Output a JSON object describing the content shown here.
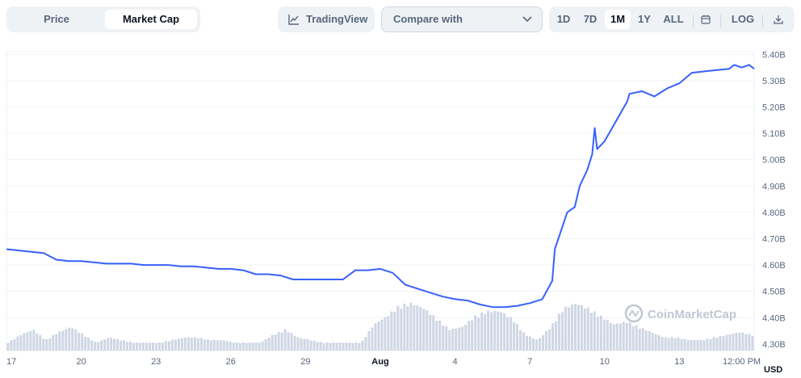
{
  "toolbar": {
    "view_tabs": [
      {
        "label": "Price",
        "active": false
      },
      {
        "label": "Market Cap",
        "active": true
      }
    ],
    "tradingview_label": "TradingView",
    "compare_label": "Compare with",
    "ranges": [
      {
        "label": "1D",
        "active": false
      },
      {
        "label": "7D",
        "active": false
      },
      {
        "label": "1M",
        "active": true
      },
      {
        "label": "1Y",
        "active": false
      },
      {
        "label": "ALL",
        "active": false
      }
    ],
    "calendar_icon": "calendar-icon",
    "log_label": "LOG",
    "download_icon": "download-icon"
  },
  "watermark": "CoinMarketCap",
  "currency_label": "USD",
  "colors": {
    "line": "#3861fb",
    "volume": "#cfd6e4",
    "grid": "#eff2f5",
    "text_muted": "#58667e",
    "control_bg": "#eff2f5"
  },
  "chart_data": {
    "type": "line",
    "series": [
      {
        "x": [
          0,
          0.5,
          1,
          1.5,
          2,
          2.5,
          3,
          3.5,
          4,
          4.5,
          5,
          5.5,
          6,
          6.5,
          7,
          7.5,
          8,
          8.5,
          9,
          9.5,
          10,
          10.5,
          11,
          11.5,
          12,
          12.5,
          13,
          13.5,
          14,
          14.5,
          15,
          15.5,
          16,
          16.5,
          17,
          17.5,
          18,
          18.5,
          19,
          19.5,
          20,
          20.5,
          21,
          21.5,
          21.9,
          22,
          22.5,
          22.8,
          23,
          23.3,
          23.5,
          23.6,
          23.7,
          24,
          24.3,
          24.6,
          24.9,
          25,
          25.5,
          26,
          26.5,
          27,
          27.5,
          28,
          28.5,
          29,
          29.2,
          29.5,
          29.8,
          30
        ],
        "y": [
          4.66,
          4.655,
          4.65,
          4.645,
          4.62,
          4.615,
          4.615,
          4.61,
          4.605,
          4.605,
          4.605,
          4.6,
          4.6,
          4.6,
          4.595,
          4.595,
          4.59,
          4.585,
          4.585,
          4.58,
          4.565,
          4.565,
          4.56,
          4.545,
          4.545,
          4.545,
          4.545,
          4.545,
          4.58,
          4.58,
          4.585,
          4.57,
          4.525,
          4.51,
          4.495,
          4.48,
          4.47,
          4.465,
          4.45,
          4.44,
          4.44,
          4.445,
          4.455,
          4.47,
          4.54,
          4.66,
          4.8,
          4.82,
          4.9,
          4.96,
          5.02,
          5.12,
          5.04,
          5.07,
          5.12,
          5.17,
          5.22,
          5.25,
          5.26,
          5.24,
          5.27,
          5.29,
          5.33,
          5.335,
          5.34,
          5.345,
          5.36,
          5.35,
          5.36,
          5.345
        ]
      }
    ],
    "volume_profile": [
      0.3,
      0.6,
      0.8,
      0.4,
      0.7,
      0.9,
      0.6,
      0.3,
      0.5,
      0.4,
      0.3,
      0.3,
      0.3,
      0.4,
      0.5,
      0.5,
      0.4,
      0.4,
      0.3,
      0.3,
      0.3,
      0.6,
      0.8,
      0.5,
      0.4,
      0.3,
      0.3,
      0.3,
      0.3,
      1.0,
      1.3,
      1.7,
      1.8,
      1.6,
      1.2,
      0.8,
      0.9,
      1.3,
      1.5,
      1.5,
      1.2,
      0.6,
      0.4,
      0.9,
      1.6,
      1.8,
      1.6,
      1.3,
      1.0,
      1.1,
      0.9,
      0.7,
      0.5,
      0.5,
      0.4,
      0.4,
      0.5,
      0.6,
      0.7,
      0.6
    ],
    "x_ticks": [
      {
        "x": 0,
        "label": "17",
        "bold": false
      },
      {
        "x": 3,
        "label": "20",
        "bold": false
      },
      {
        "x": 6,
        "label": "23",
        "bold": false
      },
      {
        "x": 9,
        "label": "26",
        "bold": false
      },
      {
        "x": 12,
        "label": "29",
        "bold": false
      },
      {
        "x": 15,
        "label": "Aug",
        "bold": true
      },
      {
        "x": 18,
        "label": "4",
        "bold": false
      },
      {
        "x": 21,
        "label": "7",
        "bold": false
      },
      {
        "x": 24,
        "label": "10",
        "bold": false
      },
      {
        "x": 27,
        "label": "13",
        "bold": false
      },
      {
        "x": 29.5,
        "label": "12:00 PM",
        "bold": false
      }
    ],
    "y_ticks": [
      {
        "v": 5.4,
        "label": "5.40B"
      },
      {
        "v": 5.3,
        "label": "5.30B"
      },
      {
        "v": 5.2,
        "label": "5.20B"
      },
      {
        "v": 5.1,
        "label": "5.10B"
      },
      {
        "v": 5.0,
        "label": "5.00B"
      },
      {
        "v": 4.9,
        "label": "4.90B"
      },
      {
        "v": 4.8,
        "label": "4.80B"
      },
      {
        "v": 4.7,
        "label": "4.70B"
      },
      {
        "v": 4.6,
        "label": "4.60B"
      },
      {
        "v": 4.5,
        "label": "4.50B"
      },
      {
        "v": 4.4,
        "label": "4.40B"
      },
      {
        "v": 4.3,
        "label": "4.30B"
      }
    ],
    "xlim": [
      0,
      30
    ],
    "ylim": [
      4.275,
      5.41
    ],
    "grid": true
  }
}
